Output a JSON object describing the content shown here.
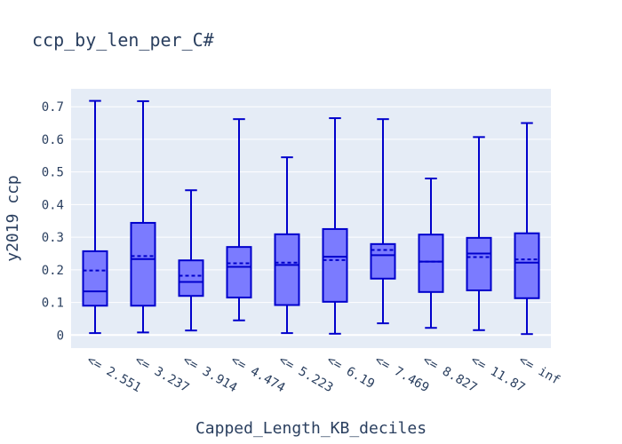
{
  "chart_data": {
    "type": "box",
    "title": "ccp_by_len_per_C#",
    "xlabel": "Capped_Length_KB_deciles",
    "ylabel": "y2019 ccp",
    "ylim": [
      -0.04,
      0.755
    ],
    "yticks": [
      0,
      0.1,
      0.2,
      0.3,
      0.4,
      0.5,
      0.6,
      0.7
    ],
    "ytick_labels": [
      "0",
      "0.1",
      "0.2",
      "0.3",
      "0.4",
      "0.5",
      "0.6",
      "0.7"
    ],
    "grid": true,
    "box_color": "#0000cc",
    "box_fill": "#7b7bff",
    "plot_bg": "#e5ecf6",
    "categories": [
      "<= 2.551",
      "<= 3.237",
      "<= 3.914",
      "<= 4.474",
      "<= 5.223",
      "<= 6.19",
      "<= 7.469",
      "<= 8.827",
      "<= 11.87",
      "<= inf"
    ],
    "boxes": [
      {
        "min": 0.006,
        "q1": 0.09,
        "median": 0.134,
        "q3": 0.257,
        "max": 0.718,
        "mean": 0.198
      },
      {
        "min": 0.008,
        "q1": 0.09,
        "median": 0.233,
        "q3": 0.344,
        "max": 0.717,
        "mean": 0.242
      },
      {
        "min": 0.014,
        "q1": 0.12,
        "median": 0.163,
        "q3": 0.229,
        "max": 0.444,
        "mean": 0.182
      },
      {
        "min": 0.045,
        "q1": 0.115,
        "median": 0.209,
        "q3": 0.27,
        "max": 0.662,
        "mean": 0.22
      },
      {
        "min": 0.006,
        "q1": 0.092,
        "median": 0.215,
        "q3": 0.309,
        "max": 0.545,
        "mean": 0.222
      },
      {
        "min": 0.004,
        "q1": 0.102,
        "median": 0.24,
        "q3": 0.325,
        "max": 0.665,
        "mean": 0.23
      },
      {
        "min": 0.036,
        "q1": 0.173,
        "median": 0.245,
        "q3": 0.279,
        "max": 0.662,
        "mean": 0.261
      },
      {
        "min": 0.022,
        "q1": 0.132,
        "median": 0.225,
        "q3": 0.308,
        "max": 0.48,
        "mean": 0.225
      },
      {
        "min": 0.015,
        "q1": 0.137,
        "median": 0.25,
        "q3": 0.298,
        "max": 0.607,
        "mean": 0.239
      },
      {
        "min": 0.003,
        "q1": 0.113,
        "median": 0.222,
        "q3": 0.312,
        "max": 0.65,
        "mean": 0.232
      }
    ]
  }
}
